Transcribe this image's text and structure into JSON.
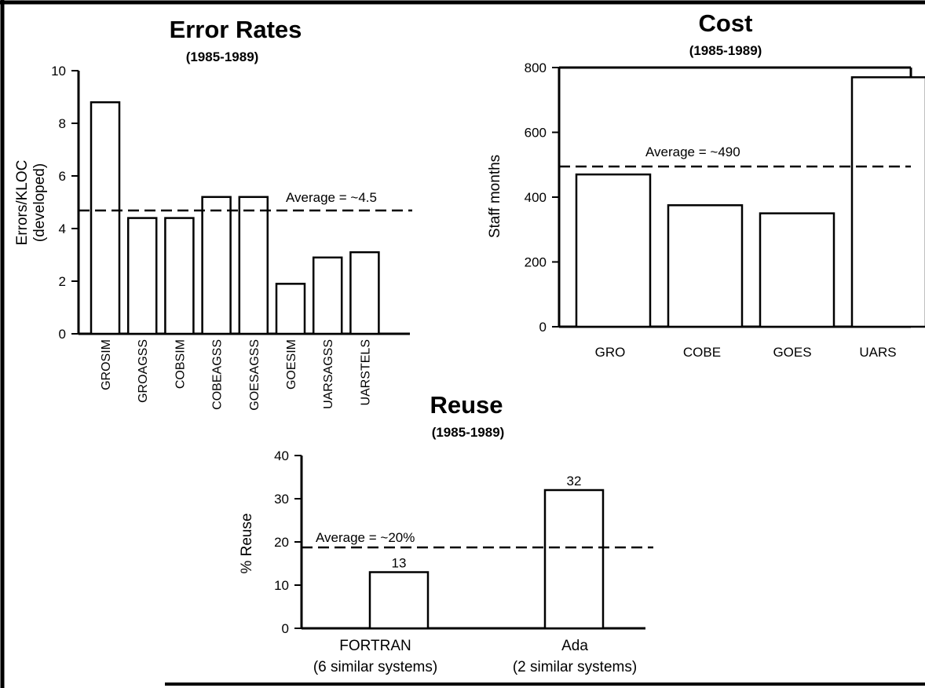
{
  "chart_data": [
    {
      "type": "bar",
      "title": "Error Rates",
      "subtitle": "(1985-1989)",
      "ylabel": "Errors/KLOC",
      "ylabel2": "(developed)",
      "ylim": [
        0,
        10
      ],
      "yticks": [
        0,
        2,
        4,
        6,
        8,
        10
      ],
      "categories": [
        "GROSIM",
        "GROAGSS",
        "COBSIM",
        "COBEAGSS",
        "GOESAGSS",
        "GOESIM",
        "UARSAGSS",
        "UARSTELS"
      ],
      "values": [
        8.8,
        4.4,
        4.4,
        5.2,
        5.2,
        1.9,
        2.9,
        3.1
      ],
      "average": 4.5,
      "average_label": "Average = ~4.5",
      "grid": false
    },
    {
      "type": "bar",
      "title": "Cost",
      "subtitle": "(1985-1989)",
      "ylabel": "Staff months",
      "ylim": [
        0,
        800
      ],
      "yticks": [
        0,
        200,
        400,
        600,
        800
      ],
      "categories": [
        "GRO",
        "COBE",
        "GOES",
        "UARS"
      ],
      "values": [
        470,
        375,
        350,
        770
      ],
      "average": 490,
      "average_label": "Average = ~490",
      "grid": false
    },
    {
      "type": "bar",
      "title": "Reuse",
      "subtitle": "(1985-1989)",
      "ylabel": "% Reuse",
      "ylim": [
        0,
        40
      ],
      "yticks": [
        0,
        10,
        20,
        30,
        40
      ],
      "categories": [
        "FORTRAN",
        "Ada"
      ],
      "category_notes": [
        "(6 similar systems)",
        "(2 similar systems)"
      ],
      "values": [
        13,
        32
      ],
      "data_labels": [
        "13",
        "32"
      ],
      "average": 18,
      "average_label": "Average = ~20%",
      "grid": false
    }
  ]
}
